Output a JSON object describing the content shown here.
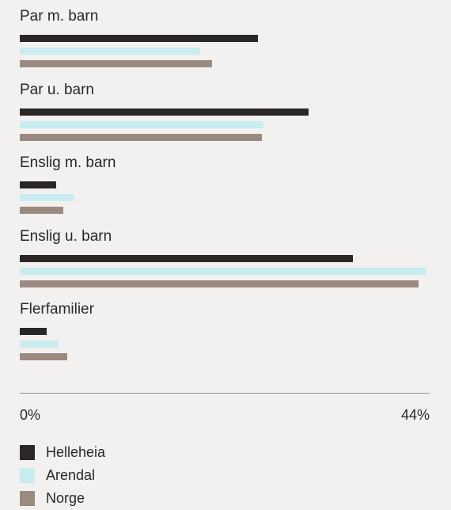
{
  "chart_data": {
    "type": "bar",
    "orientation": "horizontal",
    "categories": [
      "Par m. barn",
      "Par u. barn",
      "Enslig m. barn",
      "Enslig u. barn",
      "Flerfamilier"
    ],
    "series": [
      {
        "name": "Helleheia",
        "color": "#2b2726",
        "values": [
          25.6,
          31.0,
          3.9,
          35.8,
          2.9
        ]
      },
      {
        "name": "Arendal",
        "color": "#c9ecf0",
        "values": [
          19.4,
          26.2,
          5.9,
          43.7,
          4.2
        ]
      },
      {
        "name": "Norge",
        "color": "#9a8a80",
        "values": [
          20.6,
          26.0,
          4.7,
          42.8,
          5.1
        ]
      }
    ],
    "xlim": [
      0,
      44
    ],
    "tick_labels": [
      "0%",
      "44%"
    ],
    "legend_position": "bottom-left",
    "grid": false
  }
}
